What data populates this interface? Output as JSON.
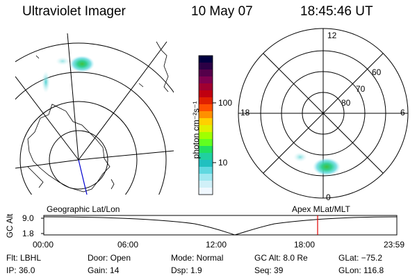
{
  "header": {
    "instrument": "Ultraviolet Imager",
    "date": "10 May 07",
    "time": "18:45:46 UT"
  },
  "colorbar": {
    "unit_label": "photon cm⁻²s⁻¹",
    "ticks": [
      "100",
      "10"
    ],
    "colors": [
      "#000040",
      "#2b0045",
      "#55004a",
      "#7f004f",
      "#a00030",
      "#c00010",
      "#e02000",
      "#ff5000",
      "#ff9000",
      "#ffd000",
      "#e0f000",
      "#a0ff00",
      "#60ff20",
      "#20e060",
      "#20d0a0",
      "#20c0c0",
      "#60d8e0",
      "#a0e8f0",
      "#d0f0f8",
      "#f0f8ff"
    ]
  },
  "left_panel": {
    "title": "Geographic Lat/Lon"
  },
  "right_panel": {
    "title": "Apex  MLat/MLT",
    "mlt_labels": [
      "12",
      "18",
      "6",
      "0"
    ],
    "mlat_labels": [
      "60",
      "70",
      "80"
    ]
  },
  "altitude_plot": {
    "axis_label": "GC Alt",
    "y_ticks": [
      "9.0",
      "1.8"
    ],
    "x_ticks": [
      "00:00",
      "06:00",
      "12:00",
      "18:00",
      "23:59"
    ],
    "marker_color": "#e00000"
  },
  "info": {
    "flt": "Flt: LBHL",
    "ip": "IP: 36.0",
    "door": "Door: Open",
    "gain": "Gain: 14",
    "mode": "Mode: Normal",
    "dsp": "Dsp:    1.9",
    "gcalt": "GC Alt: 8.0 Re",
    "seq": "Seq: 39",
    "glat": "GLat: −75.2",
    "glon": "GLon: 116.8"
  }
}
